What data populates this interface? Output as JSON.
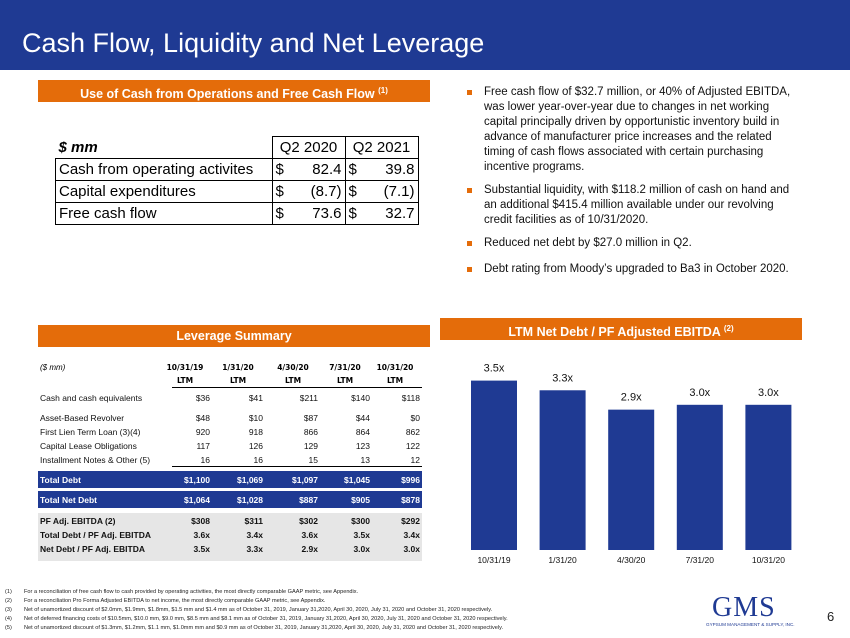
{
  "header": {
    "title": "Cash Flow, Liquidity and Net Leverage"
  },
  "cash_section": {
    "heading": "Use of Cash from Operations and Free Cash Flow",
    "heading_note": "(1)",
    "table": {
      "columns": [
        "$ mm",
        "Q2 2020",
        "Q2 2021"
      ],
      "rows": [
        [
          "Cash from operating activites",
          "$",
          "82.4",
          "$",
          "39.8"
        ],
        [
          "Capital expenditures",
          "$",
          "(8.7)",
          "$",
          "(7.1)"
        ],
        [
          "Free cash flow",
          "$",
          "73.6",
          "$",
          "32.7"
        ]
      ]
    }
  },
  "bullets": [
    "Free cash flow of $32.7 million, or 40% of Adjusted EBITDA, was lower year-over-year due to changes in net working capital principally driven by opportunistic inventory build in advance of manufacturer price increases and the related timing of cash flows associated with certain purchasing incentive programs.",
    "Substantial liquidity, with $118.2 million of cash on hand and an additional $415.4 million available under our revolving credit facilities as of 10/31/2020.",
    "Reduced net debt by $27.0 million in Q2.",
    "Debt rating from Moody’s upgraded to Ba3 in October 2020."
  ],
  "leverage": {
    "heading": "Leverage Summary",
    "unit": "($ mm)",
    "columns": [
      [
        "10/31/19",
        "LTM"
      ],
      [
        "1/31/20",
        "LTM"
      ],
      [
        "4/30/20",
        "LTM"
      ],
      [
        "7/31/20",
        "LTM"
      ],
      [
        "10/31/20",
        "LTM"
      ]
    ],
    "groups": [
      [
        [
          "Cash and cash equivalents",
          "$36",
          "$41",
          "$211",
          "$140",
          "$118"
        ]
      ],
      [
        [
          "Asset-Based Revolver",
          "$48",
          "$10",
          "$87",
          "$44",
          "$0"
        ],
        [
          "First Lien Term Loan (3)(4)",
          "920",
          "918",
          "866",
          "864",
          "862"
        ],
        [
          "Capital Lease Obligations",
          "117",
          "126",
          "129",
          "123",
          "122"
        ],
        [
          "Installment Notes & Other (5)",
          "16",
          "16",
          "15",
          "13",
          "12"
        ]
      ],
      [
        [
          "Total Debt",
          "$1,100",
          "$1,069",
          "$1,097",
          "$1,045",
          "$996"
        ]
      ],
      [
        [
          "Total Net Debt",
          "$1,064",
          "$1,028",
          "$887",
          "$905",
          "$878"
        ]
      ],
      [
        [
          "PF Adj. EBITDA (2)",
          "$308",
          "$311",
          "$302",
          "$300",
          "$292"
        ],
        [
          "Total Debt / PF Adj. EBITDA",
          "3.6x",
          "3.4x",
          "3.6x",
          "3.5x",
          "3.4x"
        ],
        [
          "Net Debt / PF Adj. EBITDA",
          "3.5x",
          "3.3x",
          "2.9x",
          "3.0x",
          "3.0x"
        ]
      ]
    ]
  },
  "chart_data": {
    "type": "bar",
    "title": "LTM Net Debt / PF Adjusted EBITDA",
    "title_note": "(2)",
    "categories": [
      "10/31/19",
      "1/31/20",
      "4/30/20",
      "7/31/20",
      "10/31/20"
    ],
    "values": [
      3.5,
      3.3,
      2.9,
      3.0,
      3.0
    ],
    "value_labels": [
      "3.5x",
      "3.3x",
      "2.9x",
      "3.0x",
      "3.0x"
    ],
    "color": "#1f3a93"
  },
  "footnotes": [
    {
      "marker": "(1)",
      "text": "For a reconciliation of free cash flow to cash provided by operating activities, the most directly comparable GAAP metric, see Appendix."
    },
    {
      "marker": "(2)",
      "text": "For a reconciliation Pro Forma Adjusted EBITDA to net income, the most directly comparable GAAP metric, see Appendix."
    },
    {
      "marker": "(3)",
      "text": "Net of unamortized discount of $2.0mm, $1.9mm, $1.8mm, $1.5 mm and $1.4 mm as of October 31, 2019, January 31,2020, April 30, 2020, July 31, 2020 and October 31, 2020 respectively."
    },
    {
      "marker": "(4)",
      "text": "Net of deferred financing costs of $10.5mm, $10.0 mm, $9.0 mm, $8.5 mm and $8.1 mm as of October 31, 2019, January 31,2020, April 30, 2020, July 31, 2020 and October 31, 2020 respectively."
    },
    {
      "marker": "(5)",
      "text": "Net of unamortized discount of $1.3mm, $1.2mm, $1.1 mm, $1.0mm mm and $0.9 mm as of October 31, 2019, January 31,2020, April 30, 2020, July 31, 2020 and October 31, 2020 respectively."
    }
  ],
  "logo": {
    "name": "GMS",
    "tagline": "GYPSUM MANAGEMENT & SUPPLY, INC."
  },
  "page_number": "6"
}
